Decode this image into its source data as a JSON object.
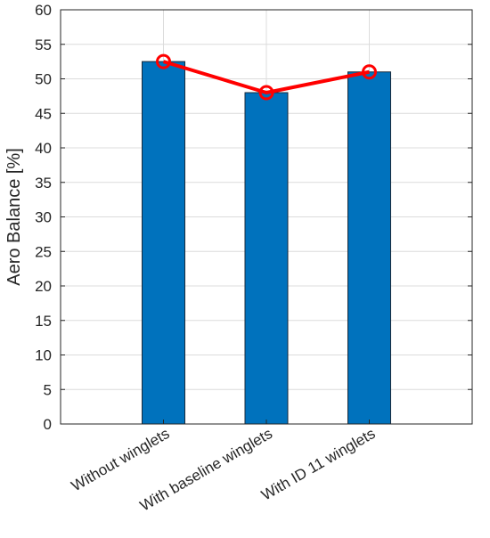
{
  "chart_data": {
    "type": "bar",
    "title": "",
    "xlabel": "",
    "ylabel": "Aero Balance [%]",
    "ylim": [
      0,
      60
    ],
    "yticks": [
      0,
      5,
      10,
      15,
      20,
      25,
      30,
      35,
      40,
      45,
      50,
      55,
      60
    ],
    "grid": true,
    "categories": [
      "Without winglets",
      "With baseline winglets",
      "With ID 11 winglets"
    ],
    "values": [
      52.5,
      48.0,
      51.0
    ],
    "line_overlay": {
      "type": "line",
      "marker": "circle",
      "values": [
        52.5,
        48.0,
        51.0
      ]
    },
    "colors": {
      "bar": "#0072bd",
      "bar_edge": "#1a2a3a",
      "line": "#ff0000",
      "grid": "#dcdcdc"
    }
  }
}
